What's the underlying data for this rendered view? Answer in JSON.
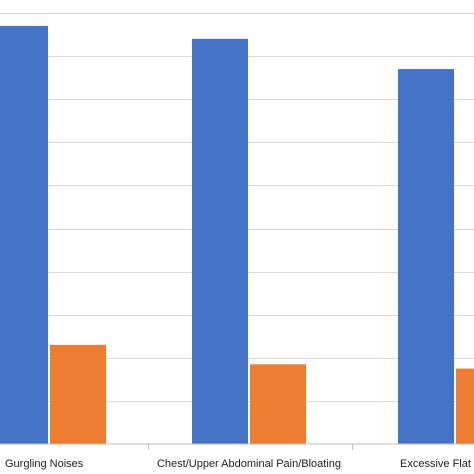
{
  "chart_data": {
    "type": "bar",
    "categories": [
      "Gurgling Noises",
      "Chest/Upper Abdominal Pain/Bloating",
      "Excessive Flat"
    ],
    "series": [
      {
        "values": [
          97,
          94,
          87
        ],
        "color": "#4472C4"
      },
      {
        "values": [
          23,
          18.5,
          17.5
        ],
        "color": "#ED7D31"
      }
    ],
    "ylim": [
      0,
      100
    ],
    "grid": true,
    "gridline_count": 10,
    "legend": "none"
  }
}
